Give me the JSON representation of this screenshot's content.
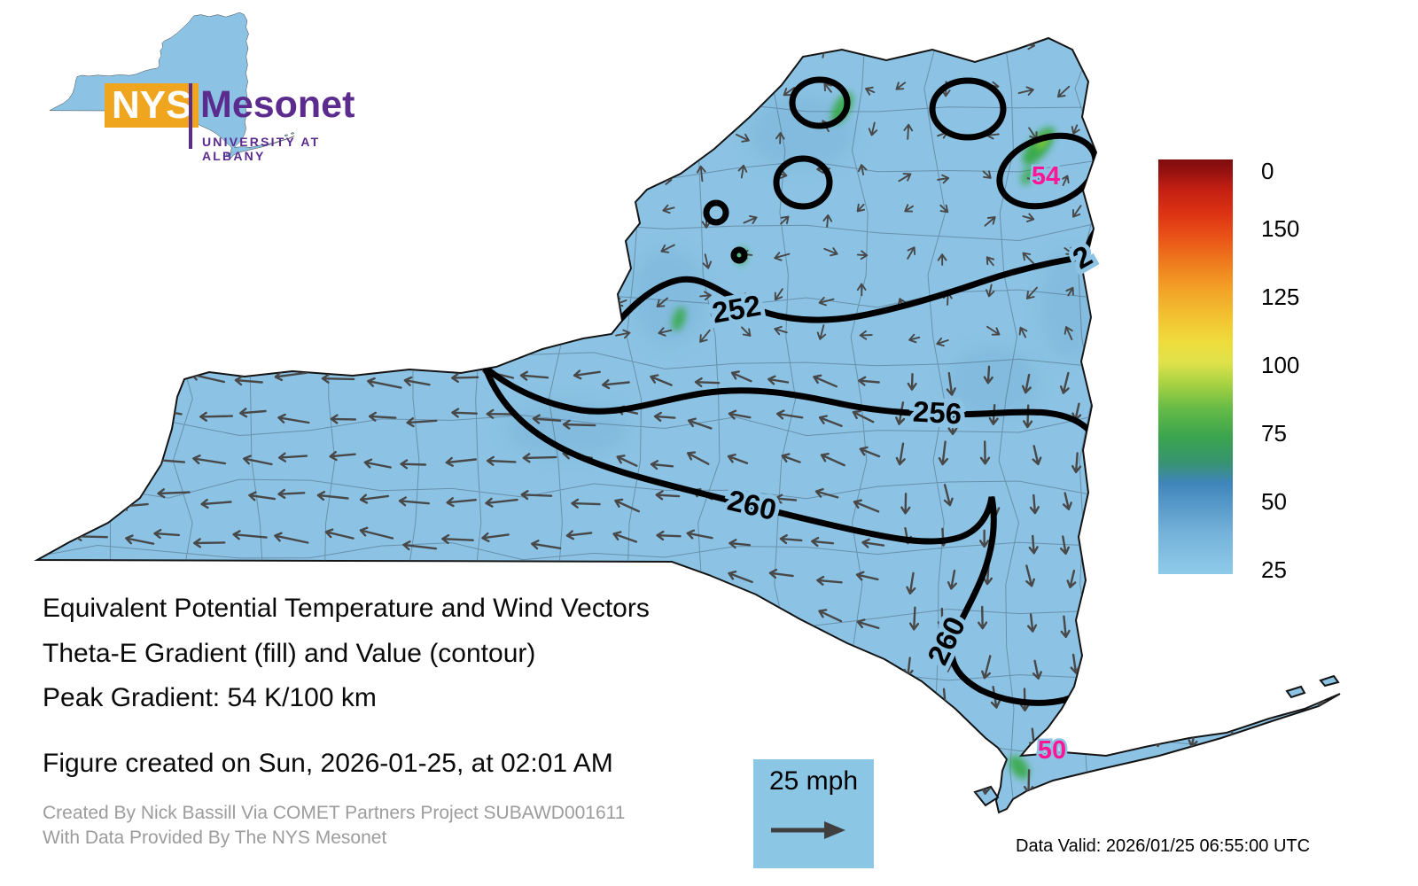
{
  "logo": {
    "acronym": "NYS",
    "name": "Mesonet",
    "tagline": "UNIVERSITY AT ALBANY"
  },
  "map": {
    "region": "New York State",
    "fill_color": "#8cc3e4",
    "contour_labels": [
      {
        "value": "252"
      },
      {
        "value": "256"
      },
      {
        "value": "260"
      },
      {
        "value": "260"
      },
      {
        "value": "2"
      }
    ],
    "gradient_labels": [
      {
        "value": "54"
      },
      {
        "value": "50"
      }
    ]
  },
  "colorbar": {
    "ticks": [
      "150",
      "125",
      "100",
      "75",
      "50",
      "25",
      "0"
    ]
  },
  "wind_legend": {
    "label": "25 mph"
  },
  "caption": {
    "line1": "Equivalent Potential Temperature and Wind Vectors",
    "line2": "Theta-E Gradient (fill) and Value (contour)",
    "line3": "Peak Gradient: 54 K/100 km",
    "created": "Figure created on Sun, 2026-01-25, at 02:01 AM"
  },
  "credits": {
    "line1": "Created By Nick Bassill Via COMET Partners Project SUBAWD001611",
    "line2": "With Data Provided By The NYS Mesonet"
  },
  "data_valid": "Data Valid: 2026/01/25 06:55:00 UTC",
  "chart_data": {
    "type": "heatmap",
    "title": "Equivalent Potential Temperature and Wind Vectors",
    "subtitle": "Theta-E Gradient (fill) and Value (contour)",
    "region": "New York State",
    "fill_variable": "Theta-E Gradient (K/100 km)",
    "contour_variable": "Theta-E Value (K)",
    "contour_levels_visible": [
      252,
      256,
      260
    ],
    "peak_gradient_k_per_100km": 54,
    "local_maxima_labels": [
      54,
      50
    ],
    "colorbar_range": [
      0,
      150
    ],
    "colorbar_ticks": [
      0,
      25,
      50,
      75,
      100,
      125,
      150
    ],
    "wind_reference_mph": 25,
    "legend_position": "right",
    "notes": "Fill mostly 0-10 (light blue) with small green maxima; winds westward in west, southward in east, light/variable in north"
  }
}
